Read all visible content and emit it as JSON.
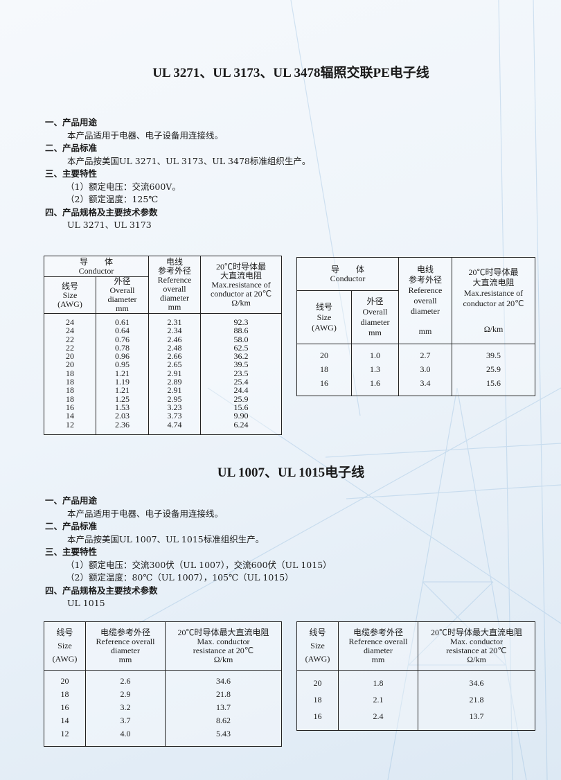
{
  "section1": {
    "title": "UL 3271、UL 3173、UL 3478辐照交联PE电子线",
    "items": [
      {
        "heading": "一、产品用途",
        "lines": [
          "本产品适用于电器、电子设备用连接线。"
        ]
      },
      {
        "heading": "二、产品标准",
        "lines": [
          "本产品按美国UL 3271、UL 3173、UL 3478标准组织生产。"
        ]
      },
      {
        "heading": "三、主要特性",
        "lines": [
          "（1）额定电压：交流600V。",
          "（2）额定温度：125℃"
        ]
      },
      {
        "heading": "四、产品规格及主要技术参数",
        "lines": [
          "UL 3271、UL 3173"
        ]
      }
    ],
    "table1": {
      "h_conductor": "导　　体",
      "h_conductor_en": "Conductor",
      "h_size": "线号",
      "h_size_en": "Size",
      "h_size_unit": "(AWG)",
      "h_od": "外径",
      "h_od_en": "Overall",
      "h_od_en2": "diameter",
      "h_od_unit": "mm",
      "h_ref": "电线",
      "h_ref2": "参考外径",
      "h_ref_en": "Reference",
      "h_ref_en2": "overall",
      "h_ref_en3": "diameter",
      "h_ref_unit": "mm",
      "h_res": "20℃时导体最",
      "h_res2": "大直流电阻",
      "h_res_en": "Max.resistance of",
      "h_res_en2": "conductor at 20℃",
      "h_res_unit": "Ω/km",
      "size": [
        "24",
        "24",
        "22",
        "22",
        "20",
        "20",
        "18",
        "18",
        "18",
        "18",
        "16",
        "14",
        "12"
      ],
      "od": [
        "0.61",
        "0.64",
        "0.76",
        "0.78",
        "0.96",
        "0.95",
        "1.21",
        "1.19",
        "1.21",
        "1.25",
        "1.53",
        "2.03",
        "2.36"
      ],
      "ref": [
        "2.31",
        "2.34",
        "2.46",
        "2.48",
        "2.66",
        "2.65",
        "2.91",
        "2.89",
        "2.91",
        "2.95",
        "3.23",
        "3.73",
        "4.74"
      ],
      "res": [
        "92.3",
        "88.6",
        "58.0",
        "62.5",
        "36.2",
        "39.5",
        "23.5",
        "25.4",
        "24.4",
        "25.9",
        "15.6",
        "9.90",
        "6.24"
      ]
    },
    "table2": {
      "h_conductor": "导　　体",
      "h_conductor_en": "Conductor",
      "h_size": "线号",
      "h_size_en": "Size",
      "h_size_unit": "(AWG)",
      "h_od": "外径",
      "h_od_en": "Overall",
      "h_od_en2": "diameter",
      "h_od_unit": "mm",
      "h_ref": "电线",
      "h_ref2": "参考外径",
      "h_ref_en": "Reference",
      "h_ref_en2": "overall",
      "h_ref_en3": "diameter",
      "h_ref_unit": "mm",
      "h_res": "20℃时导体最",
      "h_res2": "大直流电阻",
      "h_res_en": "Max.resistance of",
      "h_res_en2": "conductor at 20℃",
      "h_res_unit": "Ω/km",
      "size": [
        "20",
        "18",
        "16"
      ],
      "od": [
        "1.0",
        "1.3",
        "1.6"
      ],
      "ref": [
        "2.7",
        "3.0",
        "3.4"
      ],
      "res": [
        "39.5",
        "25.9",
        "15.6"
      ]
    }
  },
  "section2": {
    "title": "UL 1007、UL 1015电子线",
    "items": [
      {
        "heading": "一、产品用途",
        "lines": [
          "本产品适用于电器、电子设备用连接线。"
        ]
      },
      {
        "heading": "二、产品标准",
        "lines": [
          "本产品按美国UL 1007、UL 1015标准组织生产。"
        ]
      },
      {
        "heading": "三、主要特性",
        "lines": [
          "（1）额定电压：交流300伏（UL 1007），交流600伏（UL 1015）",
          "（2）额定温度：80℃（UL 1007），105℃（UL 1015）"
        ]
      },
      {
        "heading": "四、产品规格及主要技术参数",
        "lines": [
          "UL 1015"
        ]
      }
    ],
    "table3": {
      "h_size": "线号",
      "h_size_en": "Size",
      "h_size_unit": "(AWG)",
      "h_ref": "电缆参考外径",
      "h_ref_en": "Reference overall",
      "h_ref_en2": "diameter",
      "h_ref_unit": "mm",
      "h_res": "20℃时导体最大直流电阻",
      "h_res_en": "Max. conductor",
      "h_res_en2": "resistance at 20℃",
      "h_res_unit": "Ω/km",
      "size": [
        "20",
        "18",
        "16",
        "14",
        "12"
      ],
      "ref": [
        "2.6",
        "2.9",
        "3.2",
        "3.7",
        "4.0"
      ],
      "res": [
        "34.6",
        "21.8",
        "13.7",
        "8.62",
        "5.43"
      ]
    },
    "table4": {
      "h_size": "线号",
      "h_size_en": "Size",
      "h_size_unit": "(AWG)",
      "h_ref": "电缆参考外径",
      "h_ref_en": "Reference overall",
      "h_ref_en2": "diameter",
      "h_ref_unit": "mm",
      "h_res": "20℃时导体最大直流电阻",
      "h_res_en": "Max. conductor",
      "h_res_en2": "resistance at 20℃",
      "h_res_unit": "Ω/km",
      "size": [
        "20",
        "18",
        "16"
      ],
      "ref": [
        "1.8",
        "2.1",
        "2.4"
      ],
      "res": [
        "34.6",
        "21.8",
        "13.7"
      ]
    }
  },
  "colors": {
    "background": "#eef4fa",
    "text": "#1a1a1a",
    "decoration": "#9cc3e2"
  }
}
